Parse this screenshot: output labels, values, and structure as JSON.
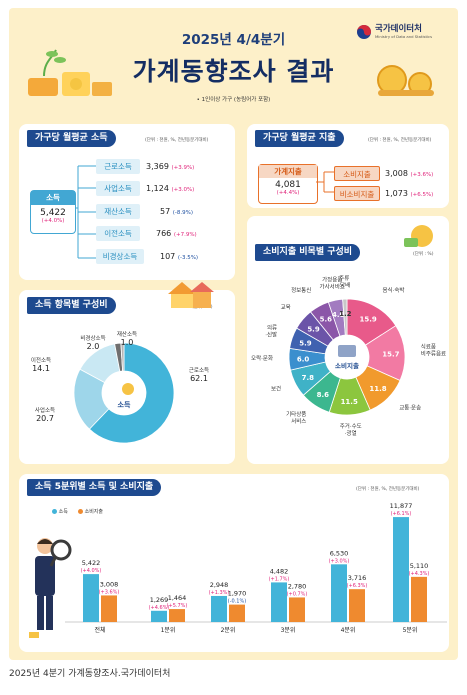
{
  "header": {
    "subtitle": "2025년 4/4분기",
    "title": "가계동향조사 결과",
    "note": "• 1인이상 가구 (농림어가 포함)",
    "logo_text": "국가데이터처",
    "logo_sub": "Ministry of Data and Statistics"
  },
  "income": {
    "title": "가구당 월평균 소득",
    "unit": "(단위 : 천원, %, 전년동분기대비)",
    "total_label": "소득",
    "total_value": "5,422",
    "total_pct": "(+4.0%)",
    "items": [
      {
        "label": "근로소득",
        "value": "3,369",
        "pct": "(+3.9%)",
        "neg": false
      },
      {
        "label": "사업소득",
        "value": "1,124",
        "pct": "(+3.0%)",
        "neg": false
      },
      {
        "label": "재산소득",
        "value": "57",
        "pct": "(-8.9%)",
        "neg": true
      },
      {
        "label": "이전소득",
        "value": "766",
        "pct": "(+7.9%)",
        "neg": false
      },
      {
        "label": "비경상소득",
        "value": "107",
        "pct": "(-3.5%)",
        "neg": true
      }
    ]
  },
  "expense": {
    "title": "가구당 월평균 지출",
    "unit": "(단위 : 천원, %, 전년동분기대비)",
    "total_label": "가계지출",
    "total_value": "4,081",
    "total_pct": "(+4.4%)",
    "items": [
      {
        "label": "소비지출",
        "value": "3,008",
        "pct": "(+3.6%)"
      },
      {
        "label": "비소비지출",
        "value": "1,073",
        "pct": "(+6.5%)"
      }
    ]
  },
  "colors": {
    "income": "#42b4d9",
    "expense": "#ef8a2f",
    "navy": "#1e4a8f",
    "pink": "#e0237a",
    "blue": "#1d4fa0"
  },
  "income_pie": {
    "title": "소득 항목별 구성비",
    "unit": "(단위 : %)",
    "center_label": "소득"
  },
  "consumption_pie": {
    "title": "소비지출 비목별 구성비",
    "unit": "(단위 : %)",
    "center_label": "소비지출"
  },
  "quintile": {
    "title": "소득 5분위별 소득 및 소비지출",
    "unit": "(단위 : 천원, %, 전년동분기대비)",
    "legend_income": "소득",
    "legend_expense": "소비지출"
  },
  "footer": "2025년 4분기 가계동향조사.국가데이터처",
  "chart_data": [
    {
      "type": "pie",
      "title": "소득 항목별 구성비",
      "labels": [
        "근로소득",
        "사업소득",
        "이전소득",
        "비경상소득",
        "재산소득"
      ],
      "values": [
        62.1,
        20.7,
        14.1,
        2.0,
        1.0
      ]
    },
    {
      "type": "pie",
      "title": "소비지출 비목별 구성비",
      "labels": [
        "음식·숙박",
        "식료품·비주류음료",
        "교통·운송",
        "주거·수도·광열",
        "기타상품서비스",
        "보건",
        "오락·문화",
        "의류·신발",
        "교육",
        "정보통신",
        "가정용품·가사서비스",
        "주류·담배"
      ],
      "display_values": [
        "15.9",
        "15.7",
        "11.8",
        "11.5",
        "8.6",
        "7.8",
        "6.0",
        "5.9",
        "5.9",
        "5.6",
        "4.0",
        "1.2"
      ],
      "values": [
        15.9,
        15.7,
        11.8,
        11.5,
        8.6,
        7.8,
        6.0,
        5.9,
        5.9,
        5.6,
        4.0,
        1.2
      ],
      "colors": [
        "#e85a8a",
        "#f27aa3",
        "#f19a2d",
        "#8cc63e",
        "#3cb78f",
        "#3fb2c7",
        "#3b8fce",
        "#3f62b0",
        "#6b54a8",
        "#8b56a8",
        "#a27bc0",
        "#c8c8c8"
      ]
    },
    {
      "type": "bar",
      "title": "소득 5분위별 소득 및 소비지출",
      "categories": [
        "전체",
        "1분위",
        "2분위",
        "3분위",
        "4분위",
        "5분위"
      ],
      "series": [
        {
          "name": "소득",
          "values": [
            5422,
            1269,
            2948,
            4482,
            6530,
            11877
          ],
          "labels": [
            "5,422",
            "1,269",
            "2,948",
            "4,482",
            "6,530",
            "11,877"
          ],
          "pcts": [
            "(+4.0%)",
            "(+4.6%)",
            "(+1.3%)",
            "(+1.7%)",
            "(+3.0%)",
            "(+6.1%)"
          ]
        },
        {
          "name": "소비지출",
          "values": [
            3008,
            1464,
            1970,
            2780,
            3716,
            5110
          ],
          "labels": [
            "3,008",
            "1,464",
            "1,970",
            "2,780",
            "3,716",
            "5,110"
          ],
          "pcts": [
            "(+3.6%)",
            "(+5.7%)",
            "(-0.1%)",
            "(+0.7%)",
            "(+6.3%)",
            "(+4.3%)"
          ]
        }
      ],
      "ylim": [
        0,
        12000
      ]
    }
  ]
}
